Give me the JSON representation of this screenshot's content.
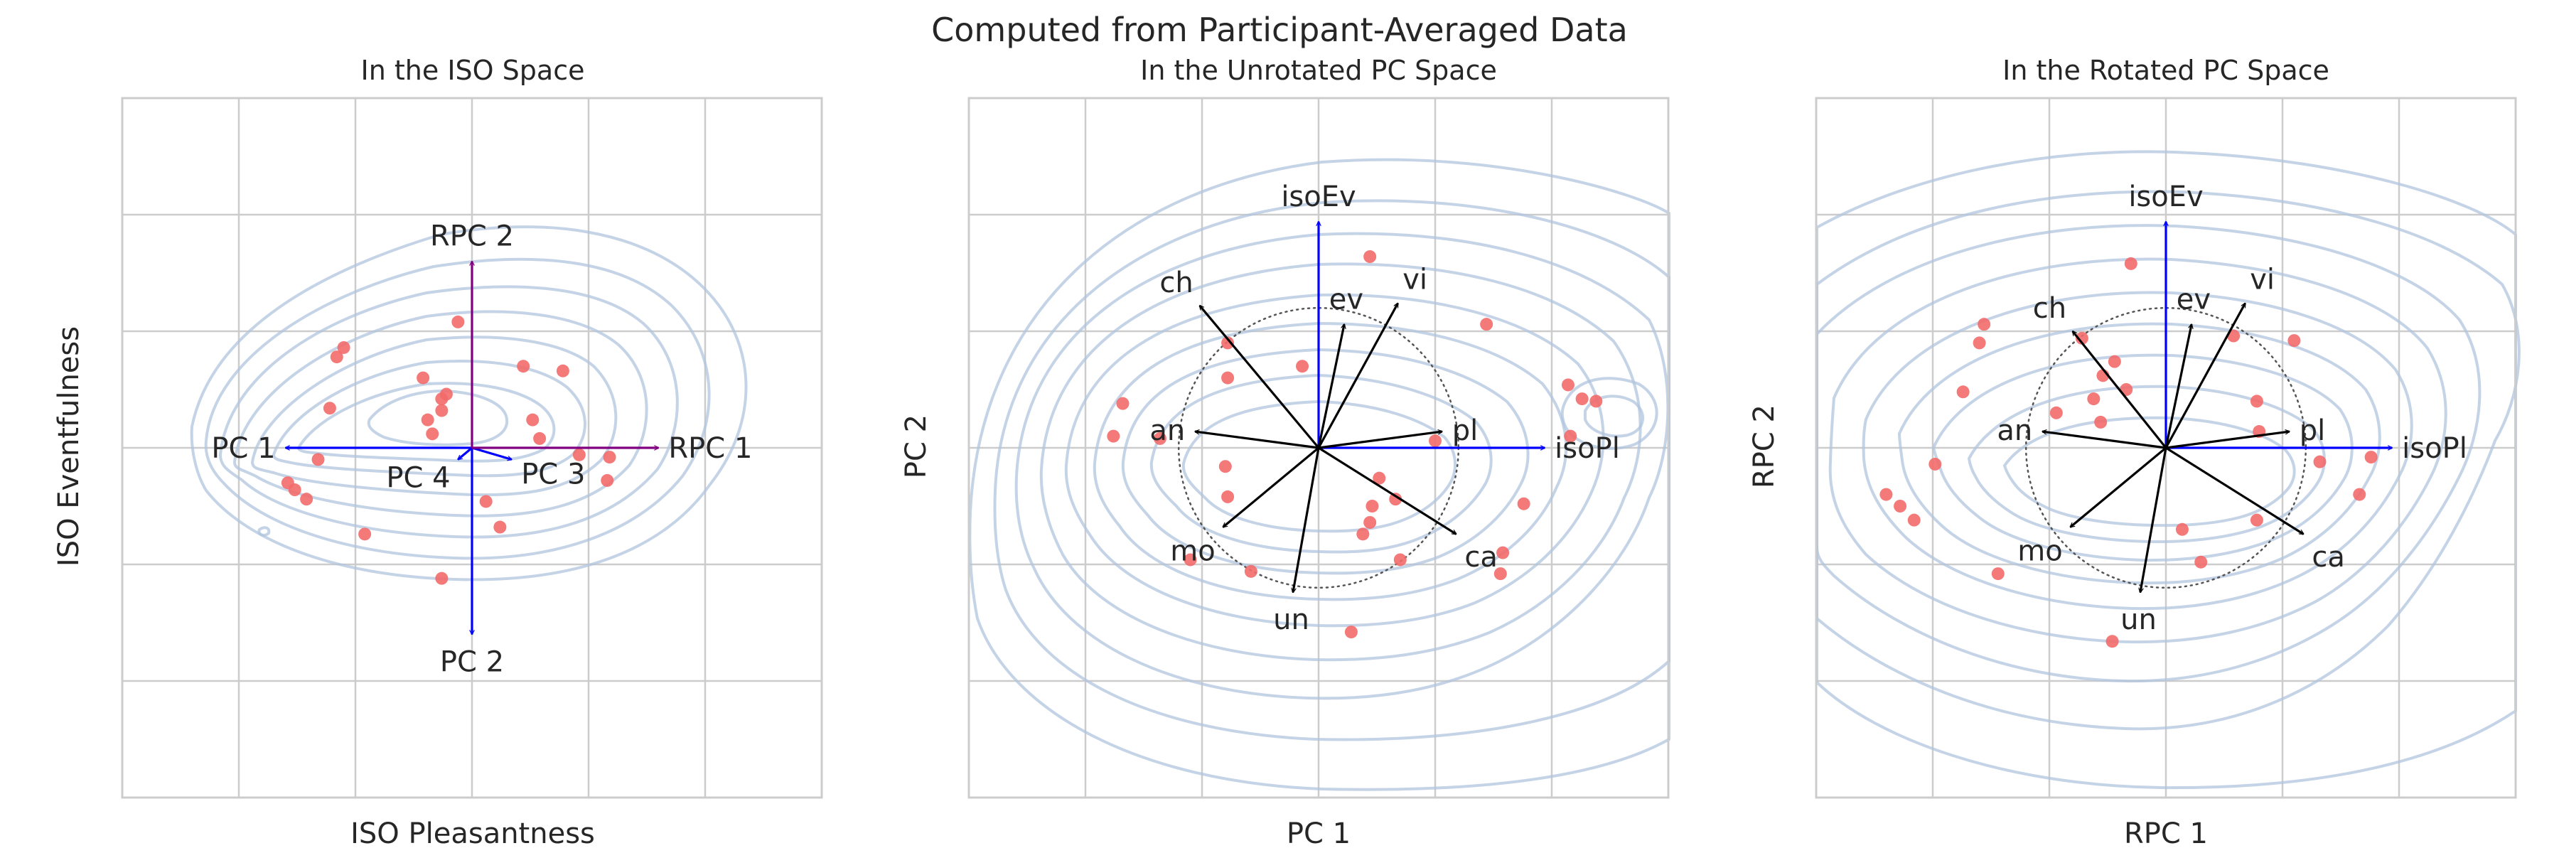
{
  "figure": {
    "suptitle": "Computed from Participant-Averaged Data",
    "colors": {
      "points": "#f36a6a",
      "contours": "#b0c4de",
      "iso_axes": "#0000ff",
      "rotated_axes": "#800080",
      "grid": "#cccccc"
    }
  },
  "chart_data": [
    {
      "type": "scatter",
      "title": "In the ISO Space",
      "xlabel": "ISO Pleasantness",
      "ylabel": "ISO Eventfulness",
      "xlim": [
        -1.5,
        1.5
      ],
      "ylim": [
        -1.5,
        1.5
      ],
      "grid": true,
      "density_contours": true,
      "points": [
        [
          -0.55,
          0.43
        ],
        [
          -0.58,
          0.39
        ],
        [
          -0.61,
          0.17
        ],
        [
          -0.66,
          -0.05
        ],
        [
          -0.79,
          -0.15
        ],
        [
          -0.76,
          -0.18
        ],
        [
          -0.71,
          -0.22
        ],
        [
          -0.46,
          -0.37
        ],
        [
          -0.21,
          0.3
        ],
        [
          -0.13,
          0.21
        ],
        [
          -0.11,
          0.23
        ],
        [
          -0.13,
          0.16
        ],
        [
          -0.19,
          0.12
        ],
        [
          -0.17,
          0.06
        ],
        [
          -0.06,
          0.54
        ],
        [
          0.22,
          0.35
        ],
        [
          0.39,
          0.33
        ],
        [
          0.26,
          0.12
        ],
        [
          0.29,
          0.04
        ],
        [
          0.46,
          -0.03
        ],
        [
          0.59,
          -0.04
        ],
        [
          0.58,
          -0.14
        ],
        [
          0.06,
          -0.23
        ],
        [
          0.12,
          -0.34
        ],
        [
          -0.13,
          -0.56
        ]
      ],
      "vectors": [
        {
          "label": "PC 1",
          "x": -0.8,
          "y": 0.0,
          "color": "#0000ff"
        },
        {
          "label": "PC 2",
          "x": 0.0,
          "y": -0.8,
          "color": "#0000ff"
        },
        {
          "label": "PC 3",
          "x": 0.17,
          "y": -0.05,
          "color": "#0000ff"
        },
        {
          "label": "PC 4",
          "x": -0.06,
          "y": -0.05,
          "color": "#0000ff"
        },
        {
          "label": "RPC 1",
          "x": 0.8,
          "y": 0.0,
          "color": "#800080"
        },
        {
          "label": "RPC 2",
          "x": 0.0,
          "y": 0.8,
          "color": "#800080"
        }
      ]
    },
    {
      "type": "scatter",
      "title": "In the Unrotated PC Space",
      "xlabel": "PC 1",
      "ylabel": "PC 2",
      "xlim": [
        -1.5,
        1.5
      ],
      "ylim": [
        -1.5,
        1.5
      ],
      "grid": true,
      "density_contours": true,
      "unit_circle": true,
      "points": [
        [
          0.22,
          0.82
        ],
        [
          0.72,
          0.53
        ],
        [
          -0.39,
          0.45
        ],
        [
          -0.07,
          0.35
        ],
        [
          -0.39,
          0.3
        ],
        [
          -0.84,
          0.19
        ],
        [
          -0.68,
          0.04
        ],
        [
          -0.88,
          0.05
        ],
        [
          0.5,
          0.03
        ],
        [
          1.08,
          0.05
        ],
        [
          1.07,
          0.27
        ],
        [
          1.13,
          0.21
        ],
        [
          1.19,
          0.2
        ],
        [
          -0.4,
          -0.08
        ],
        [
          -0.39,
          -0.21
        ],
        [
          0.26,
          -0.13
        ],
        [
          0.33,
          -0.22
        ],
        [
          0.23,
          -0.25
        ],
        [
          0.22,
          -0.32
        ],
        [
          0.19,
          -0.37
        ],
        [
          0.88,
          -0.24
        ],
        [
          0.79,
          -0.45
        ],
        [
          0.35,
          -0.48
        ],
        [
          0.78,
          -0.54
        ],
        [
          -0.55,
          -0.48
        ],
        [
          -0.29,
          -0.53
        ],
        [
          0.14,
          -0.79
        ]
      ],
      "vectors": [
        {
          "label": "isoEv",
          "x": 0.0,
          "y": 0.97,
          "color": "#0000ff"
        },
        {
          "label": "isoPl",
          "x": 0.97,
          "y": 0.0,
          "color": "#0000ff"
        },
        {
          "label": "ch",
          "x": -0.51,
          "y": 0.61,
          "color": "#000000"
        },
        {
          "label": "ev",
          "x": 0.11,
          "y": 0.53,
          "color": "#000000"
        },
        {
          "label": "vi",
          "x": 0.34,
          "y": 0.62,
          "color": "#000000"
        },
        {
          "label": "an",
          "x": -0.53,
          "y": 0.07,
          "color": "#000000"
        },
        {
          "label": "pl",
          "x": 0.53,
          "y": 0.07,
          "color": "#000000"
        },
        {
          "label": "mo",
          "x": -0.41,
          "y": -0.34,
          "color": "#000000"
        },
        {
          "label": "ca",
          "x": 0.59,
          "y": -0.37,
          "color": "#000000"
        },
        {
          "label": "un",
          "x": -0.11,
          "y": -0.62,
          "color": "#000000"
        }
      ]
    },
    {
      "type": "scatter",
      "title": "In the Rotated PC Space",
      "xlabel": "RPC 1",
      "ylabel": "RPC 2",
      "xlim": [
        -1.5,
        1.5
      ],
      "ylim": [
        -1.5,
        1.5
      ],
      "grid": true,
      "density_contours": true,
      "unit_circle": true,
      "points": [
        [
          -0.15,
          0.79
        ],
        [
          -0.78,
          0.53
        ],
        [
          -0.8,
          0.45
        ],
        [
          -0.36,
          0.47
        ],
        [
          -0.22,
          0.37
        ],
        [
          -0.27,
          0.31
        ],
        [
          -0.31,
          0.21
        ],
        [
          -0.17,
          0.25
        ],
        [
          -0.87,
          0.24
        ],
        [
          -0.47,
          0.15
        ],
        [
          -0.28,
          0.11
        ],
        [
          0.29,
          0.48
        ],
        [
          0.55,
          0.46
        ],
        [
          0.39,
          0.2
        ],
        [
          0.4,
          0.07
        ],
        [
          -0.99,
          -0.07
        ],
        [
          -1.2,
          -0.2
        ],
        [
          -1.14,
          -0.25
        ],
        [
          -1.08,
          -0.31
        ],
        [
          0.66,
          -0.06
        ],
        [
          0.88,
          -0.04
        ],
        [
          0.83,
          -0.2
        ],
        [
          0.07,
          -0.35
        ],
        [
          0.39,
          -0.31
        ],
        [
          0.15,
          -0.49
        ],
        [
          -0.72,
          -0.54
        ],
        [
          -0.23,
          -0.83
        ]
      ],
      "vectors": [
        {
          "label": "isoEv",
          "x": 0.0,
          "y": 0.97,
          "color": "#0000ff"
        },
        {
          "label": "isoPl",
          "x": 0.97,
          "y": 0.0,
          "color": "#0000ff"
        },
        {
          "label": "ch",
          "x": -0.4,
          "y": 0.5,
          "color": "#000000"
        },
        {
          "label": "ev",
          "x": 0.11,
          "y": 0.53,
          "color": "#000000"
        },
        {
          "label": "vi",
          "x": 0.34,
          "y": 0.62,
          "color": "#000000"
        },
        {
          "label": "an",
          "x": -0.53,
          "y": 0.07,
          "color": "#000000"
        },
        {
          "label": "pl",
          "x": 0.53,
          "y": 0.07,
          "color": "#000000"
        },
        {
          "label": "mo",
          "x": -0.41,
          "y": -0.34,
          "color": "#000000"
        },
        {
          "label": "ca",
          "x": 0.59,
          "y": -0.37,
          "color": "#000000"
        },
        {
          "label": "un",
          "x": -0.11,
          "y": -0.62,
          "color": "#000000"
        }
      ]
    }
  ]
}
